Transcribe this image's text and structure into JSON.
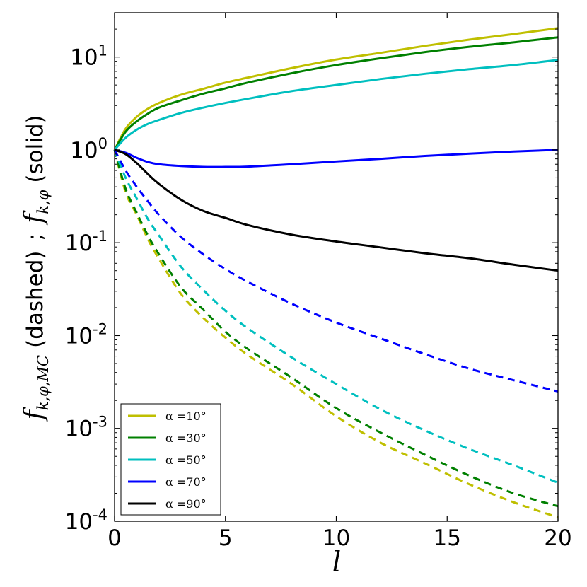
{
  "chart_data": {
    "type": "line",
    "xlabel": "l",
    "ylabel": {
      "mc_symbol": "f",
      "mc_subscript": "k,φ,MC",
      "mc_text": "(dashed)",
      "separator": ";",
      "solid_symbol": "f",
      "solid_subscript": "k,φ",
      "solid_text": "(solid)"
    },
    "xlim": [
      0,
      20
    ],
    "ylim": [
      0.0001,
      30
    ],
    "yscale": "log",
    "x_ticks": [
      "0",
      "5",
      "10",
      "15",
      "20"
    ],
    "y_ticks": [
      {
        "base": "10",
        "exp": "-4",
        "value": 0.0001
      },
      {
        "base": "10",
        "exp": "-3",
        "value": 0.001
      },
      {
        "base": "10",
        "exp": "-2",
        "value": 0.01
      },
      {
        "base": "10",
        "exp": "-1",
        "value": 0.1
      },
      {
        "base": "10",
        "exp": "0",
        "value": 1
      },
      {
        "base": "10",
        "exp": "1",
        "value": 10
      }
    ],
    "grid": false,
    "legend_position": "bottom-left",
    "x": [
      0,
      0.5,
      1,
      1.5,
      2,
      3,
      4,
      5,
      6,
      8,
      10,
      12,
      14,
      16,
      18,
      20
    ],
    "series": [
      {
        "name": "α =10°",
        "color": "#bfbf00",
        "style": "solid",
        "values": [
          1.0,
          1.69,
          2.27,
          2.77,
          3.2,
          3.93,
          4.55,
          5.3,
          6.0,
          7.6,
          9.4,
          11.1,
          13.2,
          15.4,
          17.7,
          20.5
        ]
      },
      {
        "name": "α =30°",
        "color": "#008000",
        "style": "solid",
        "values": [
          1.0,
          1.57,
          2.03,
          2.45,
          2.85,
          3.42,
          4.03,
          4.6,
          5.3,
          6.7,
          8.2,
          9.7,
          11.3,
          12.9,
          14.4,
          16.3
        ]
      },
      {
        "name": "α =50°",
        "color": "#00bfbf",
        "style": "solid",
        "values": [
          1.0,
          1.35,
          1.65,
          1.9,
          2.1,
          2.5,
          2.85,
          3.2,
          3.55,
          4.3,
          5.0,
          5.8,
          6.6,
          7.4,
          8.2,
          9.3
        ]
      },
      {
        "name": "α =70°",
        "color": "#0000ff",
        "style": "solid",
        "values": [
          1.0,
          0.93,
          0.82,
          0.74,
          0.7,
          0.67,
          0.655,
          0.655,
          0.66,
          0.7,
          0.75,
          0.8,
          0.86,
          0.91,
          0.96,
          1.0
        ]
      },
      {
        "name": "α =90°",
        "color": "#000000",
        "style": "solid",
        "values": [
          1.0,
          0.9,
          0.72,
          0.55,
          0.43,
          0.29,
          0.22,
          0.185,
          0.155,
          0.122,
          0.103,
          0.089,
          0.077,
          0.068,
          0.058,
          0.05
        ]
      },
      {
        "name": "",
        "color": "#bfbf00",
        "style": "dashed",
        "values": [
          1.0,
          0.35,
          0.2,
          0.11,
          0.067,
          0.028,
          0.0155,
          0.0095,
          0.0062,
          0.003,
          0.00135,
          0.0007,
          0.00042,
          0.00025,
          0.00016,
          0.00011
        ]
      },
      {
        "name": "",
        "color": "#008000",
        "style": "dashed",
        "values": [
          1.0,
          0.38,
          0.21,
          0.12,
          0.075,
          0.033,
          0.019,
          0.011,
          0.0072,
          0.0035,
          0.00165,
          0.0009,
          0.00052,
          0.00031,
          0.0002,
          0.000145
        ]
      },
      {
        "name": "",
        "color": "#00bfbf",
        "style": "dashed",
        "values": [
          1.0,
          0.5,
          0.3,
          0.18,
          0.12,
          0.055,
          0.031,
          0.0185,
          0.012,
          0.0058,
          0.003,
          0.0016,
          0.00095,
          0.0006,
          0.0004,
          0.00026
        ]
      },
      {
        "name": "",
        "color": "#0000ff",
        "style": "dashed",
        "values": [
          1.0,
          0.6,
          0.4,
          0.28,
          0.2,
          0.115,
          0.075,
          0.052,
          0.038,
          0.022,
          0.0138,
          0.0093,
          0.0063,
          0.0044,
          0.0033,
          0.0025
        ]
      }
    ]
  }
}
